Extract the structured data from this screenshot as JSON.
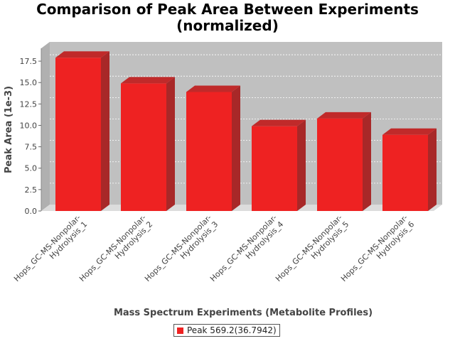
{
  "chart_data": {
    "type": "bar",
    "title": "Comparison of Peak Area Between Experiments",
    "subtitle": "(normalized)",
    "xlabel": "Mass Spectrum Experiments (Metabolite Profiles)",
    "ylabel": "Peak Area (1e-3)",
    "categories": [
      "Hops_GC-MS-Nonpolar-Hydrolysis_1",
      "Hops_GC-MS-Nonpolar-Hydrolysis_2",
      "Hops_GC-MS-Nonpolar-Hydrolysis_3",
      "Hops_GC-MS-Nonpolar-Hydrolysis_4",
      "Hops_GC-MS-Nonpolar-Hydrolysis_5",
      "Hops_GC-MS-Nonpolar-Hydrolysis_6"
    ],
    "series": [
      {
        "name": "Peak 569.2(36.7942)",
        "values": [
          17.9,
          14.9,
          13.9,
          9.9,
          10.8,
          8.9
        ],
        "color": "#ee2222"
      }
    ],
    "ylim": [
      0,
      19.0
    ],
    "yticks": [
      "0.0",
      "2.5",
      "5.0",
      "7.5",
      "10.0",
      "12.5",
      "15.0",
      "17.5"
    ],
    "grid": true,
    "legend_position": "bottom",
    "plot_background": "#c0c0c0"
  }
}
